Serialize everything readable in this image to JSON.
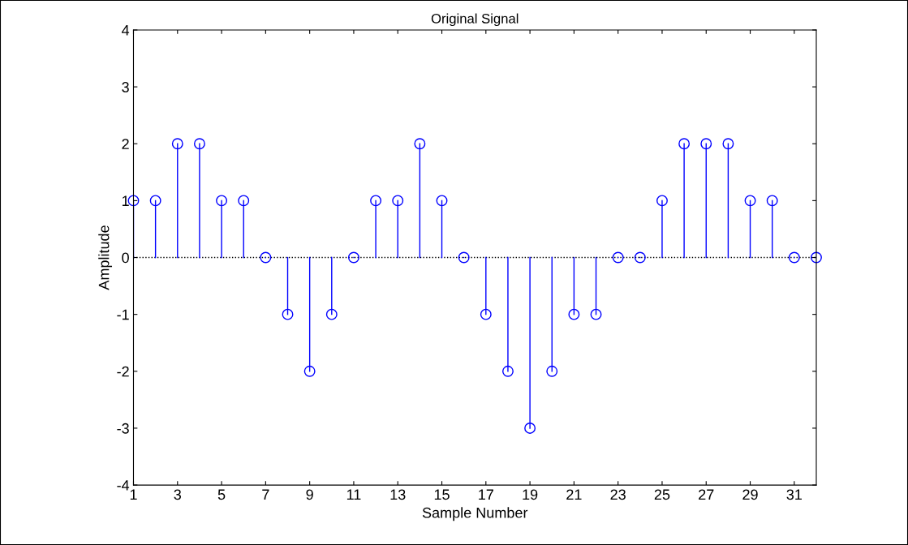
{
  "chart_data": {
    "type": "lollipop",
    "title": "Original Signal",
    "xlabel": "Sample Number",
    "ylabel": "Amplitude",
    "x": [
      1,
      2,
      3,
      4,
      5,
      6,
      7,
      8,
      9,
      10,
      11,
      12,
      13,
      14,
      15,
      16,
      17,
      18,
      19,
      20,
      21,
      22,
      23,
      24,
      25,
      26,
      27,
      28,
      29,
      30,
      31,
      32
    ],
    "series": [
      {
        "color": "#0000ff",
        "values": [
          1,
          1,
          2,
          2,
          1,
          1,
          0,
          -1,
          -2,
          -1,
          0,
          1,
          1,
          2,
          1,
          0,
          -1,
          -2,
          -3,
          -2,
          -1,
          -1,
          0,
          0,
          1,
          2,
          2,
          2,
          1,
          1,
          0,
          0
        ]
      }
    ],
    "xlim": [
      1,
      32
    ],
    "xticks": [
      1,
      3,
      5,
      7,
      9,
      11,
      13,
      15,
      17,
      19,
      21,
      23,
      25,
      27,
      29,
      31
    ],
    "ylim": [
      -4,
      4
    ],
    "yticks": [
      -4,
      -3,
      -2,
      -1,
      0,
      1,
      2,
      3,
      4
    ],
    "ref_lines": [
      {
        "axis": "y",
        "value": 0,
        "color": "#000000",
        "line_style": "dotted"
      }
    ],
    "marker": "circle",
    "grid": false,
    "legend": false
  }
}
